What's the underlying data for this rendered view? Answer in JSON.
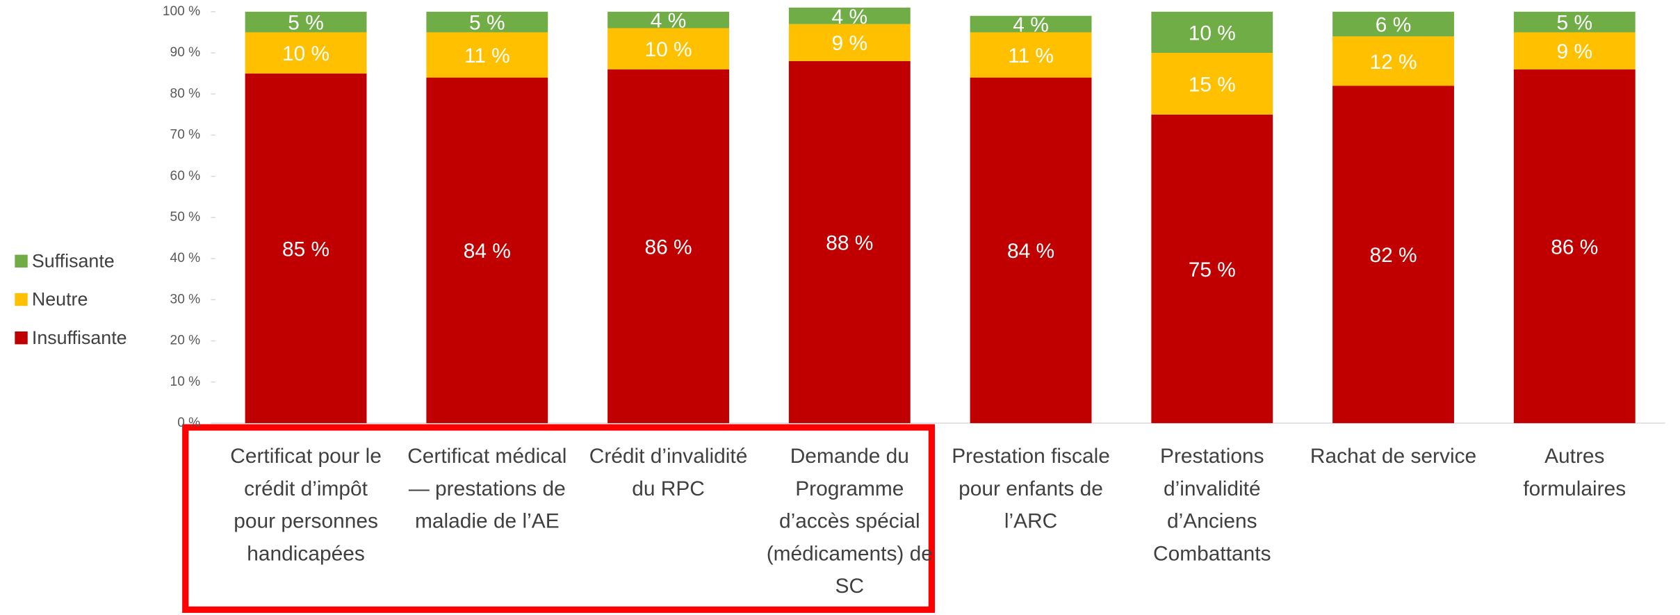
{
  "chart_data": {
    "type": "stacked_bar",
    "categories": [
      "Certificat pour le crédit d’impôt pour personnes handicapées",
      "Certificat médical — prestations de maladie de l’AE",
      "Crédit d’invalidité du RPC",
      "Demande du Programme d’accès spécial (médicaments) de SC",
      "Prestation fiscale pour enfants de l’ARC",
      "Prestations d’invalidité d’Anciens Combattants",
      "Rachat de service",
      "Autres formulaires"
    ],
    "series": [
      {
        "name": "Insuffisante",
        "color": "#c00000",
        "values": [
          85,
          84,
          86,
          88,
          84,
          75,
          82,
          86
        ],
        "value_labels": [
          "85 %",
          "84 %",
          "86 %",
          "88 %",
          "84 %",
          "75 %",
          "82 %",
          "86 %"
        ]
      },
      {
        "name": "Neutre",
        "color": "#ffc000",
        "values": [
          10,
          11,
          10,
          9,
          11,
          15,
          12,
          9
        ],
        "value_labels": [
          "10 %",
          "11 %",
          "10 %",
          "9 %",
          "11 %",
          "15 %",
          "12 %",
          "9 %"
        ]
      },
      {
        "name": "Suffisante",
        "color": "#70ad47",
        "values": [
          5,
          5,
          4,
          4,
          4,
          10,
          6,
          5
        ],
        "value_labels": [
          "5 %",
          "5 %",
          "4 %",
          "4 %",
          "4 %",
          "10 %",
          "6 %",
          "5 %"
        ]
      }
    ],
    "ylim": [
      0,
      100
    ],
    "yticks": [
      {
        "value": 0,
        "label": "0 %"
      },
      {
        "value": 10,
        "label": "10 %"
      },
      {
        "value": 20,
        "label": "20 %"
      },
      {
        "value": 30,
        "label": "30 %"
      },
      {
        "value": 40,
        "label": "40 %"
      },
      {
        "value": 50,
        "label": "50 %"
      },
      {
        "value": 60,
        "label": "60 %"
      },
      {
        "value": 70,
        "label": "70 %"
      },
      {
        "value": 80,
        "label": "80 %"
      },
      {
        "value": 90,
        "label": "90 %"
      },
      {
        "value": 100,
        "label": "100 %"
      }
    ],
    "legend": "left"
  }
}
